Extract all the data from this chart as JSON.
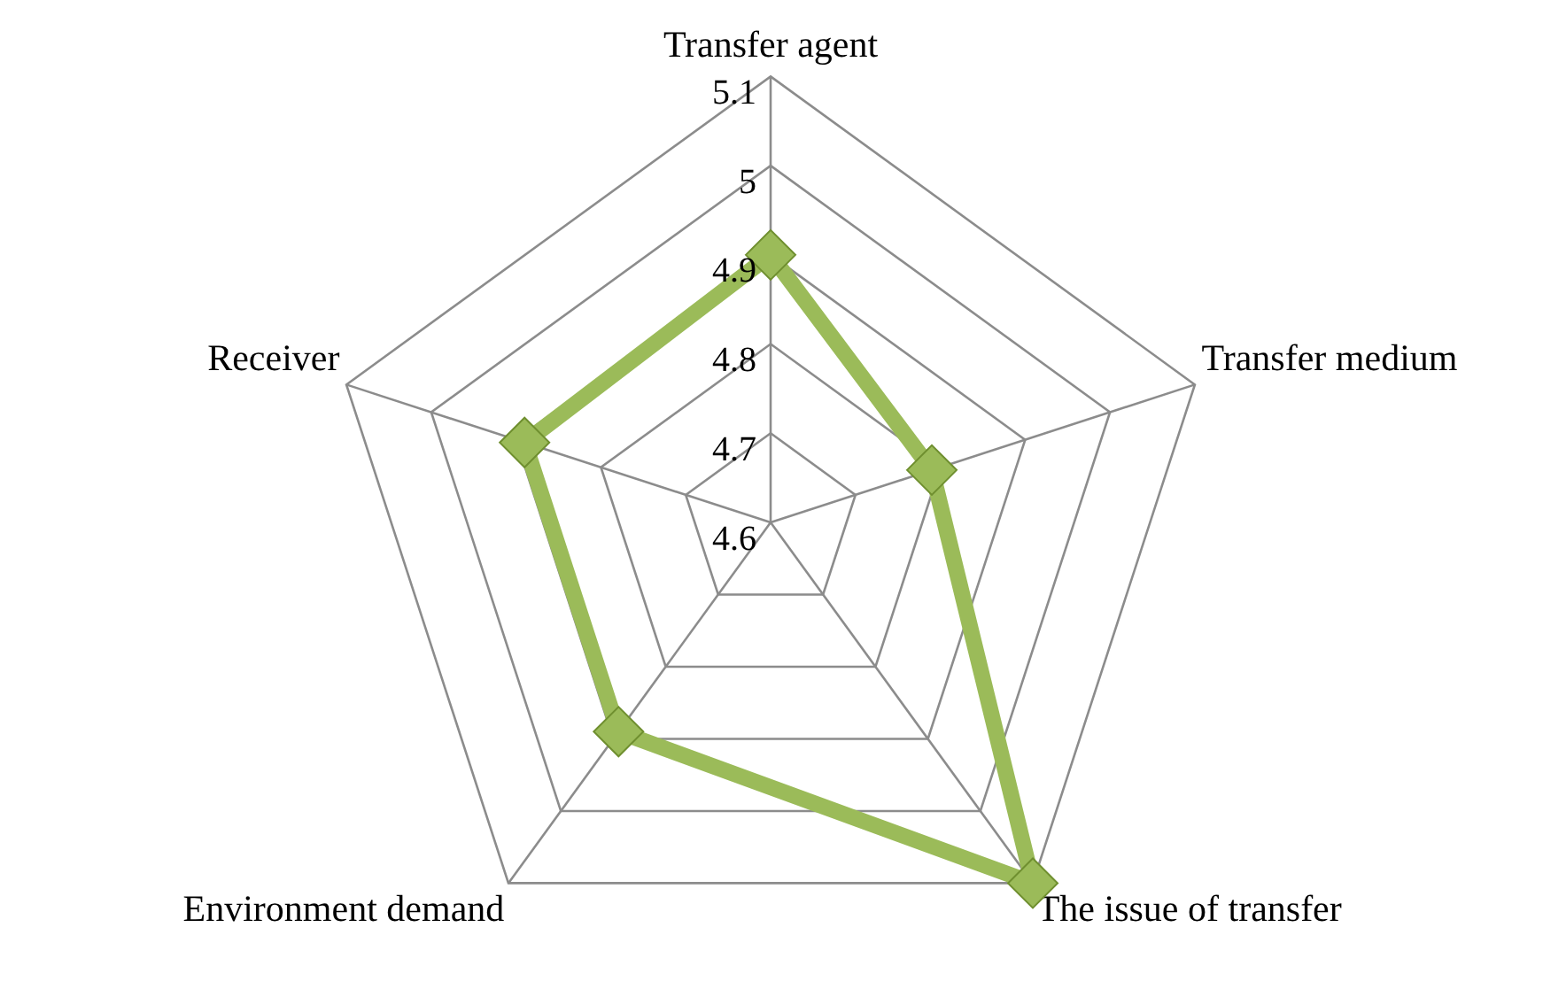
{
  "chart_data": {
    "type": "radar",
    "categories": [
      "Transfer agent",
      "Transfer medium",
      "The issue of transfer",
      "Environment demand",
      "Receiver"
    ],
    "series": [
      {
        "color": "#9bbb59",
        "values": [
          4.9,
          4.79,
          5.1,
          4.89,
          4.89
        ]
      }
    ],
    "ylim": [
      4.6,
      5.1
    ],
    "yticks": [
      4.6,
      4.7,
      4.8,
      4.9,
      5,
      5.1
    ],
    "marker": "diamond",
    "legend": false,
    "grid": true
  }
}
